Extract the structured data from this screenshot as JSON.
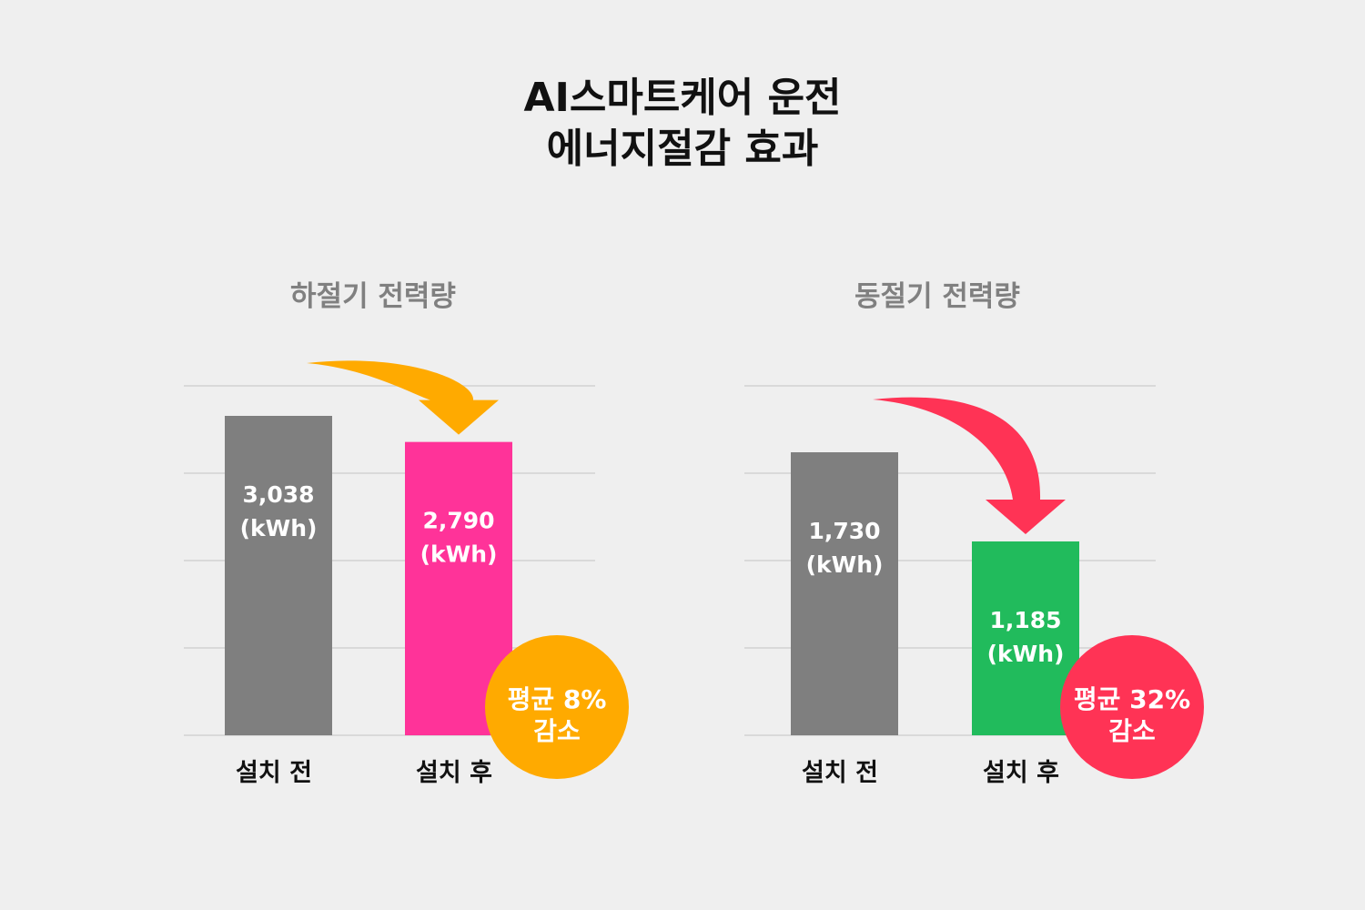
{
  "title": {
    "line1": "AI스마트케어 운전",
    "line2": "에너지절감 효과"
  },
  "colors": {
    "background": "#efefef",
    "before_bar": "#7f7f7f",
    "summer_after_bar": "#ff3399",
    "winter_after_bar": "#21bb5c",
    "summer_accent": "#ffaa00",
    "winter_accent": "#ff3355",
    "grid": "#d2d2d2",
    "subtitle": "#808080"
  },
  "chart_data": [
    {
      "type": "bar",
      "title": "하절기 전력량",
      "categories": [
        "설치 전",
        "설치 후"
      ],
      "values": [
        3038,
        2790
      ],
      "value_labels": [
        "3,038",
        "2,790"
      ],
      "unit": "(kWh)",
      "bar_colors": [
        "#7f7f7f",
        "#ff3399"
      ],
      "accent_color": "#ffaa00",
      "annotation": {
        "line1": "평균 8%",
        "line2": "감소"
      },
      "ylim": [
        0,
        4000
      ],
      "grid": true
    },
    {
      "type": "bar",
      "title": "동절기 전력량",
      "categories": [
        "설치 전",
        "설치 후"
      ],
      "values": [
        1730,
        1185
      ],
      "value_labels": [
        "1,730",
        "1,185"
      ],
      "unit": "(kWh)",
      "bar_colors": [
        "#7f7f7f",
        "#21bb5c"
      ],
      "accent_color": "#ff3355",
      "annotation": {
        "line1": "평균 32%",
        "line2": "감소"
      },
      "ylim": [
        0,
        2000
      ],
      "grid": true
    }
  ]
}
